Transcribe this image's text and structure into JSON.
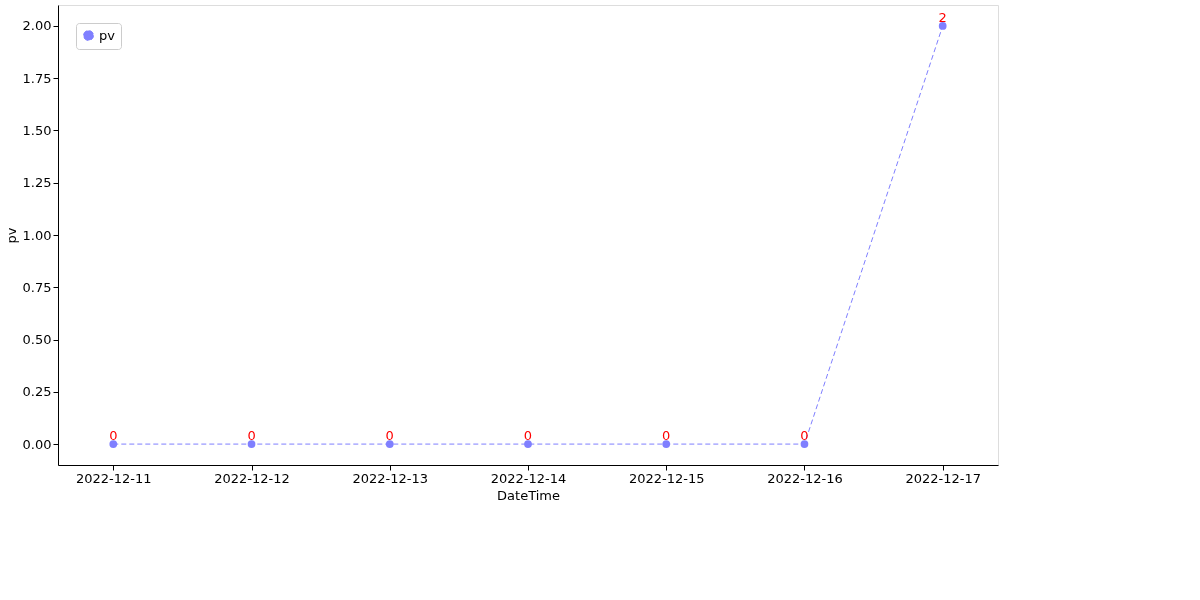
{
  "chart_data": {
    "type": "line",
    "xlabel": "DateTime",
    "ylabel": "pv",
    "categories": [
      "2022-12-11",
      "2022-12-12",
      "2022-12-13",
      "2022-12-14",
      "2022-12-15",
      "2022-12-16",
      "2022-12-17"
    ],
    "series": [
      {
        "name": "pv",
        "color": "#7f7fff",
        "values": [
          0,
          0,
          0,
          0,
          0,
          0,
          2
        ]
      }
    ],
    "ylim": [
      -0.1,
      2.1
    ],
    "yticks": [
      {
        "value": 0,
        "label": "0.00"
      },
      {
        "value": 0.25,
        "label": "0.25"
      },
      {
        "value": 0.5,
        "label": "0.50"
      },
      {
        "value": 0.75,
        "label": "0.75"
      },
      {
        "value": 1,
        "label": "1.00"
      },
      {
        "value": 1.25,
        "label": "1.25"
      },
      {
        "value": 1.5,
        "label": "1.50"
      },
      {
        "value": 1.75,
        "label": "1.75"
      },
      {
        "value": 2,
        "label": "2.00"
      }
    ],
    "data_labels": true,
    "legend": "top left",
    "grid": false,
    "marker": "circle",
    "line_style": "dashed"
  }
}
